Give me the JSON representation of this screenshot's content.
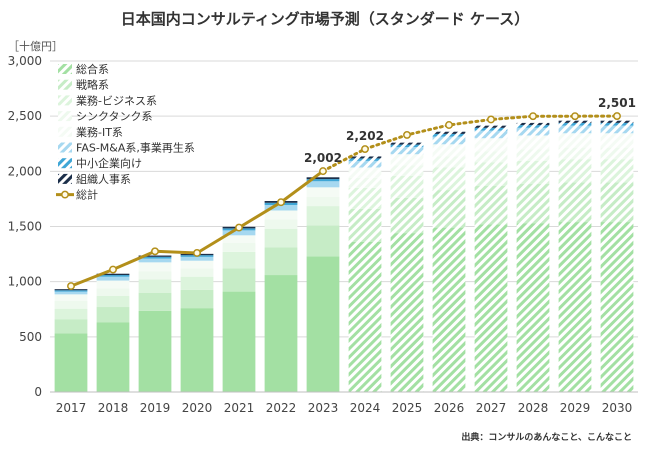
{
  "title": "日本国内コンサルティング市場予測（スタンダード ケース）",
  "unit_label": "［十億円］",
  "source": "出典：コンサルのあんなこと、こんなこと",
  "chart_data": {
    "type": "bar",
    "stacked": true,
    "categories": [
      "2017",
      "2018",
      "2019",
      "2020",
      "2021",
      "2022",
      "2023",
      "2024",
      "2025",
      "2026",
      "2027",
      "2028",
      "2029",
      "2030"
    ],
    "forecast_from": "2024",
    "ylim": [
      0,
      3000
    ],
    "yticks": [
      "0",
      "500",
      "1,000",
      "1,500",
      "2,000",
      "2,500",
      "3,000"
    ],
    "yticks_values": [
      0,
      500,
      1000,
      1500,
      2000,
      2500,
      3000
    ],
    "legend_position": "top-left",
    "series": [
      {
        "name": "総合系",
        "color": "#a3e0a3",
        "values": [
          530,
          630,
          735,
          760,
          910,
          1060,
          1230,
          1360,
          1440,
          1490,
          1520,
          1530,
          1540,
          1540
        ]
      },
      {
        "name": "戦略系",
        "color": "#c6ecc6",
        "values": [
          130,
          140,
          165,
          165,
          210,
          250,
          280,
          300,
          320,
          340,
          350,
          355,
          360,
          360
        ]
      },
      {
        "name": "業務-ビジネス系",
        "color": "#dcf4dc",
        "values": [
          95,
          100,
          120,
          120,
          150,
          170,
          175,
          190,
          200,
          205,
          210,
          210,
          210,
          210
        ]
      },
      {
        "name": "シンクタンク系",
        "color": "#eef9ee",
        "values": [
          70,
          70,
          75,
          75,
          80,
          85,
          85,
          90,
          95,
          100,
          100,
          105,
          105,
          105
        ]
      },
      {
        "name": "業務-IT系",
        "color": "#f5fbf5",
        "values": [
          60,
          70,
          80,
          70,
          70,
          80,
          85,
          95,
          100,
          110,
          120,
          125,
          130,
          130
        ]
      },
      {
        "name": "FAS-M&A系,事業再生系",
        "color": "#a6d8f0",
        "values": [
          25,
          35,
          35,
          35,
          45,
          50,
          55,
          60,
          65,
          70,
          70,
          70,
          70,
          70
        ]
      },
      {
        "name": "中小企業向け",
        "color": "#3fa6d6",
        "values": [
          12,
          15,
          15,
          15,
          18,
          20,
          20,
          22,
          22,
          24,
          24,
          24,
          24,
          24
        ]
      },
      {
        "name": "組織人事系",
        "color": "#1c2f4a",
        "values": [
          10,
          12,
          12,
          12,
          14,
          16,
          16,
          18,
          18,
          20,
          20,
          20,
          20,
          20
        ]
      }
    ],
    "total": {
      "name": "総計",
      "color": "#b38f1a",
      "values": [
        960,
        1110,
        1275,
        1260,
        1490,
        1720,
        2002,
        2202,
        2330,
        2420,
        2470,
        2500,
        2500,
        2501
      ]
    },
    "data_labels": [
      {
        "category": "2023",
        "text": "2,002"
      },
      {
        "category": "2024",
        "text": "2,202"
      },
      {
        "category": "2030",
        "text": "2,501"
      }
    ]
  }
}
